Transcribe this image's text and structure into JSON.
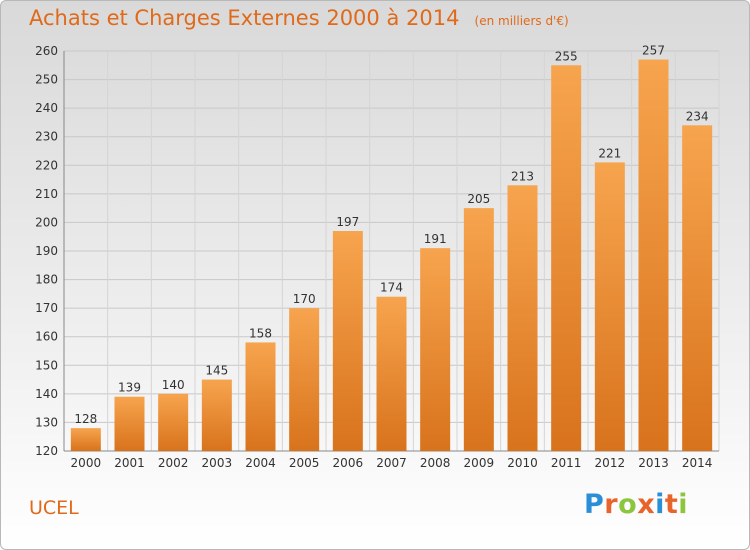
{
  "chart_data": {
    "type": "bar",
    "title": "Achats et Charges Externes 2000 à 2014",
    "subtitle": "(en milliers d'€)",
    "categories": [
      "2000",
      "2001",
      "2002",
      "2003",
      "2004",
      "2005",
      "2006",
      "2007",
      "2008",
      "2009",
      "2010",
      "2011",
      "2012",
      "2013",
      "2014"
    ],
    "values": [
      128,
      139,
      140,
      145,
      158,
      170,
      197,
      174,
      191,
      205,
      213,
      255,
      221,
      257,
      234
    ],
    "ylim": [
      120,
      260
    ],
    "yticks": [
      120,
      130,
      140,
      150,
      160,
      170,
      180,
      190,
      200,
      210,
      220,
      230,
      240,
      250,
      260
    ],
    "grid": true,
    "bar_color": "#f0902f"
  },
  "commune": "UCEL",
  "logo": {
    "letters": [
      "P",
      "r",
      "o",
      "x",
      "i",
      "t",
      "i"
    ],
    "colors": [
      "#2a8fd6",
      "#e8642a",
      "#8cc63f",
      "#e8642a",
      "#2a8fd6",
      "#e8642a",
      "#8cc63f"
    ]
  },
  "colors": {
    "title": "#e06a1a",
    "axis_text": "#333333"
  }
}
